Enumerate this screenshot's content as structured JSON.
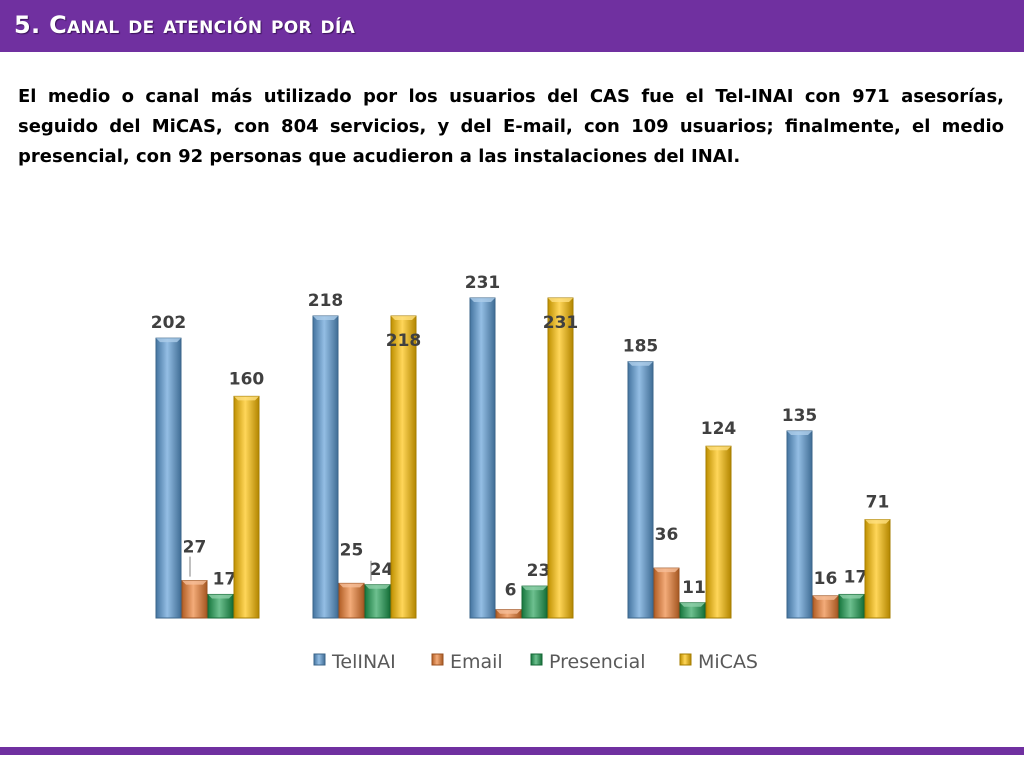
{
  "slide": {
    "title": "5. Canal de atención por día",
    "intro": "El medio o canal más utilizado por los usuarios del CAS fue el Tel-INAI con 971 asesorías, seguido del MiCAS, con 804 servicios, y del E-mail, con 109 usuarios; finalmente, el medio presencial, con 92 personas que acudieron a las instalaciones del INAI."
  },
  "colors": {
    "accent": "#7030a0",
    "series": [
      "#5b9bd5",
      "#ed7d31",
      "#1e9e52",
      "#ffc000"
    ]
  },
  "chart_data": {
    "type": "bar",
    "title": "",
    "xlabel": "",
    "ylabel": "",
    "categories": [
      "",
      "",
      "",
      "",
      ""
    ],
    "ylim": [
      0,
      231
    ],
    "grid": false,
    "legend": "bottom",
    "series": [
      {
        "name": "TelINAI",
        "values": [
          202,
          218,
          231,
          185,
          135
        ]
      },
      {
        "name": "Email",
        "values": [
          27,
          25,
          6,
          36,
          16
        ]
      },
      {
        "name": "Presencial",
        "values": [
          17,
          24,
          23,
          11,
          17
        ]
      },
      {
        "name": "MiCAS",
        "values": [
          160,
          218,
          231,
          124,
          71
        ]
      }
    ]
  }
}
